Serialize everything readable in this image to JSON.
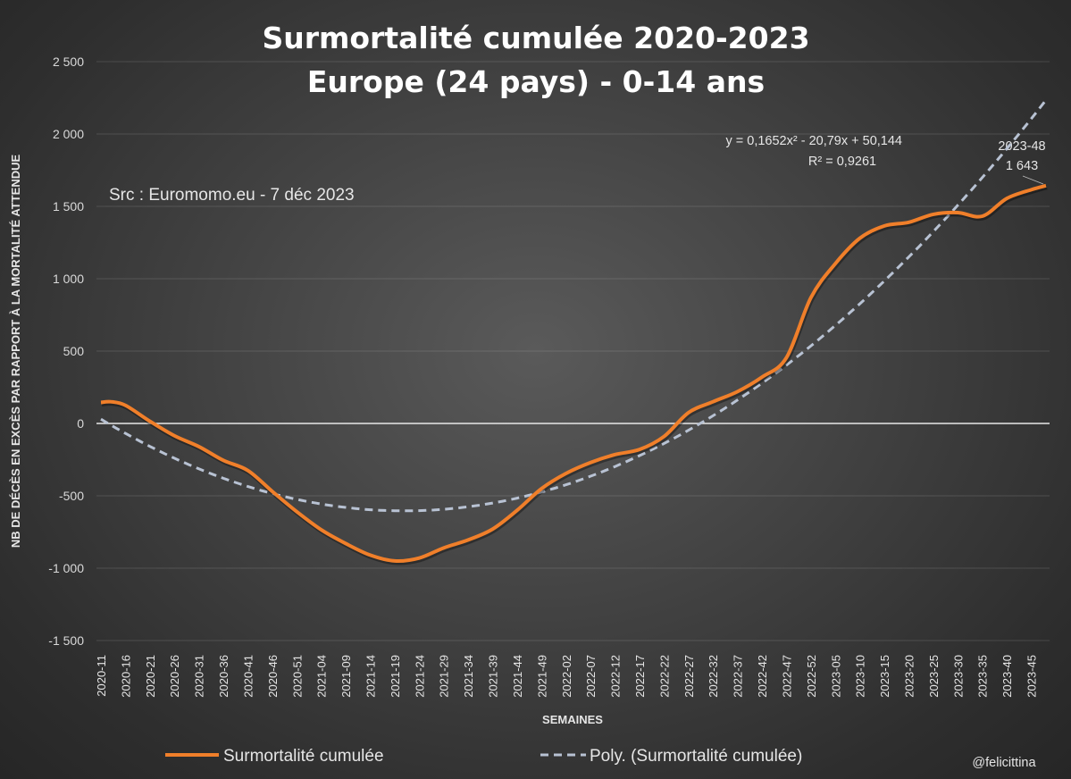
{
  "chart_data": {
    "type": "line",
    "title": "Surmortalité cumulée 2020-2023",
    "subtitle": "Europe (24 pays) - 0-14 ans",
    "source_note": "Src : Euromomo.eu  - 7 déc 2023",
    "credit": "@felicittina",
    "xlabel": "SEMAINES",
    "ylabel": "NB DE DÉCÈS EN EXCÈS PAR RAPPORT À LA MORTALITÉ ATTENDUE",
    "ylim": [
      -1500,
      2500
    ],
    "yticks": [
      2500,
      2000,
      1500,
      1000,
      500,
      0,
      -500,
      -1000,
      -1500
    ],
    "ytick_labels": [
      "2 500",
      "2 000",
      "1 500",
      "1 000",
      "500",
      "0",
      "-500",
      "-1 000",
      "-1 500"
    ],
    "grid": true,
    "legend_position": "bottom",
    "xtick_labels": [
      "2020-11",
      "2020-16",
      "2020-21",
      "2020-26",
      "2020-31",
      "2020-36",
      "2020-41",
      "2020-46",
      "2020-51",
      "2021-04",
      "2021-09",
      "2021-14",
      "2021-19",
      "2021-24",
      "2021-29",
      "2021-34",
      "2021-39",
      "2021-44",
      "2021-49",
      "2022-02",
      "2022-07",
      "2022-12",
      "2022-17",
      "2022-22",
      "2022-27",
      "2022-32",
      "2022-37",
      "2022-42",
      "2022-47",
      "2022-52",
      "2023-05",
      "2023-10",
      "2023-15",
      "2023-20",
      "2023-25",
      "2023-30",
      "2023-35",
      "2023-40",
      "2023-45"
    ],
    "n_weeks": 194,
    "series": [
      {
        "name": "Surmortalité cumulée",
        "color": "#f07f2a",
        "style": "solid",
        "x": [
          "2020-11",
          "2020-13",
          "2020-16",
          "2020-21",
          "2020-26",
          "2020-31",
          "2020-36",
          "2020-41",
          "2020-46",
          "2020-51",
          "2021-04",
          "2021-09",
          "2021-14",
          "2021-19",
          "2021-24",
          "2021-29",
          "2021-34",
          "2021-39",
          "2021-44",
          "2021-49",
          "2022-02",
          "2022-07",
          "2022-12",
          "2022-17",
          "2022-22",
          "2022-27",
          "2022-32",
          "2022-37",
          "2022-42",
          "2022-47",
          "2022-52",
          "2023-05",
          "2023-10",
          "2023-15",
          "2023-20",
          "2023-25",
          "2023-30",
          "2023-35",
          "2023-40",
          "2023-45",
          "2023-48"
        ],
        "values": [
          145,
          150,
          125,
          15,
          -85,
          -160,
          -255,
          -325,
          -470,
          -610,
          -735,
          -830,
          -910,
          -950,
          -930,
          -860,
          -805,
          -730,
          -600,
          -450,
          -345,
          -270,
          -215,
          -180,
          -90,
          75,
          150,
          220,
          320,
          455,
          870,
          1105,
          1280,
          1365,
          1390,
          1445,
          1457,
          1432,
          1555,
          1615,
          1643
        ]
      },
      {
        "name": "Poly. (Surmortalité cumulée)",
        "color": "#b8c2d3",
        "style": "dashed",
        "equation": "y = 0,1652x² - 20,79x + 50,144",
        "r2": "R² = 0,9261",
        "coefficients": [
          0.1652,
          -20.79,
          50.144
        ]
      }
    ],
    "annotation": {
      "week": "2023-48",
      "value": "1 643"
    }
  }
}
